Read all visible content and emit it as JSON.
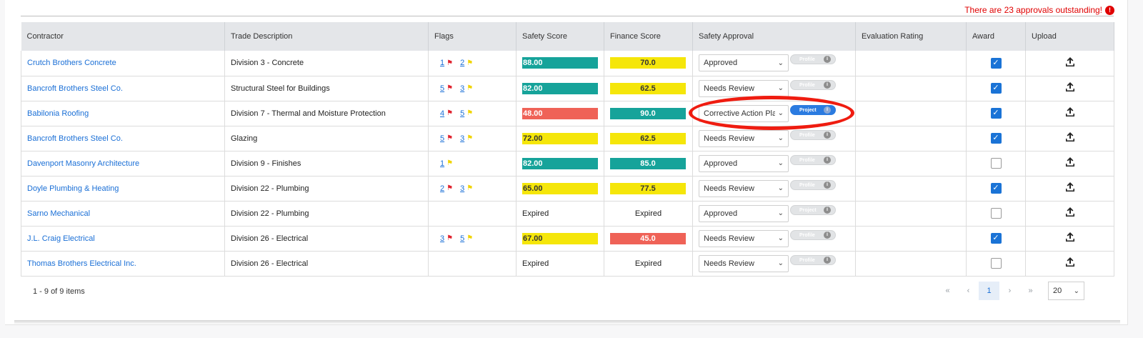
{
  "banner": {
    "outstanding_text": "There are 23 approvals outstanding!",
    "icon": "exclamation-icon"
  },
  "columns": [
    "Contractor",
    "Trade Description",
    "Flags",
    "Safety Score",
    "Finance Score",
    "Safety Approval",
    "Evaluation Rating",
    "Award",
    "Upload"
  ],
  "rows": [
    {
      "contractor": "Crutch Brothers Concrete",
      "trade": "Division 3 - Concrete",
      "red_flags": "1",
      "yellow_flags": "2",
      "safety": "88.00",
      "safety_color": "teal",
      "finance": "70.0",
      "finance_color": "yellow",
      "approval": "Approved",
      "pill": "Profile",
      "pill_color": "gray",
      "award": true
    },
    {
      "contractor": "Bancroft Brothers Steel Co.",
      "trade": "Structural Steel for Buildings",
      "red_flags": "5",
      "yellow_flags": "3",
      "safety": "82.00",
      "safety_color": "teal",
      "finance": "62.5",
      "finance_color": "yellow",
      "approval": "Needs Review",
      "pill": "Profile",
      "pill_color": "gray",
      "award": true
    },
    {
      "contractor": "Babilonia Roofing",
      "trade": "Division 7 - Thermal and Moisture Protection",
      "red_flags": "4",
      "yellow_flags": "5",
      "safety": "48.00",
      "safety_color": "red",
      "finance": "90.0",
      "finance_color": "teal",
      "approval": "Corrective Action Plan",
      "pill": "Project",
      "pill_color": "blue",
      "award": true
    },
    {
      "contractor": "Bancroft Brothers Steel Co.",
      "trade": "Glazing",
      "red_flags": "5",
      "yellow_flags": "3",
      "safety": "72.00",
      "safety_color": "yellow",
      "finance": "62.5",
      "finance_color": "yellow",
      "approval": "Needs Review",
      "pill": "Profile",
      "pill_color": "gray",
      "award": true
    },
    {
      "contractor": "Davenport Masonry Architecture",
      "trade": "Division 9 - Finishes",
      "red_flags": "",
      "yellow_flags": "1",
      "safety": "82.00",
      "safety_color": "teal",
      "finance": "85.0",
      "finance_color": "teal",
      "approval": "Approved",
      "pill": "Profile",
      "pill_color": "gray",
      "award": false
    },
    {
      "contractor": "Doyle Plumbing & Heating",
      "trade": "Division 22 - Plumbing",
      "red_flags": "2",
      "yellow_flags": "3",
      "safety": "65.00",
      "safety_color": "yellow",
      "finance": "77.5",
      "finance_color": "yellow",
      "approval": "Needs Review",
      "pill": "Profile",
      "pill_color": "gray",
      "award": true
    },
    {
      "contractor": "Sarno Mechanical",
      "trade": "Division 22 - Plumbing",
      "red_flags": "",
      "yellow_flags": "",
      "safety": "Expired",
      "safety_color": "none",
      "finance": "Expired",
      "finance_color": "none",
      "approval": "Approved",
      "pill": "Project",
      "pill_color": "gray",
      "award": false
    },
    {
      "contractor": "J.L. Craig Electrical",
      "trade": "Division 26 - Electrical",
      "red_flags": "3",
      "yellow_flags": "5",
      "safety": "67.00",
      "safety_color": "yellow",
      "finance": "45.0",
      "finance_color": "red",
      "approval": "Needs Review",
      "pill": "Profile",
      "pill_color": "gray",
      "award": true
    },
    {
      "contractor": "Thomas Brothers Electrical Inc.",
      "trade": "Division 26 - Electrical",
      "red_flags": "",
      "yellow_flags": "",
      "safety": "Expired",
      "safety_color": "none",
      "finance": "Expired",
      "finance_color": "none",
      "approval": "Needs Review",
      "pill": "Profile",
      "pill_color": "gray",
      "award": false
    }
  ],
  "footer": {
    "count_text": "1 - 9 of 9 items",
    "first": "«",
    "prev": "‹",
    "current_page": "1",
    "next": "›",
    "last": "»",
    "page_size": "20"
  },
  "colors": {
    "teal": "#16a39a",
    "yellow": "#f5e60a",
    "red": "#ef6257",
    "link": "#1a6fd6",
    "alert": "#e00000",
    "highlight": "#ef1c10"
  }
}
